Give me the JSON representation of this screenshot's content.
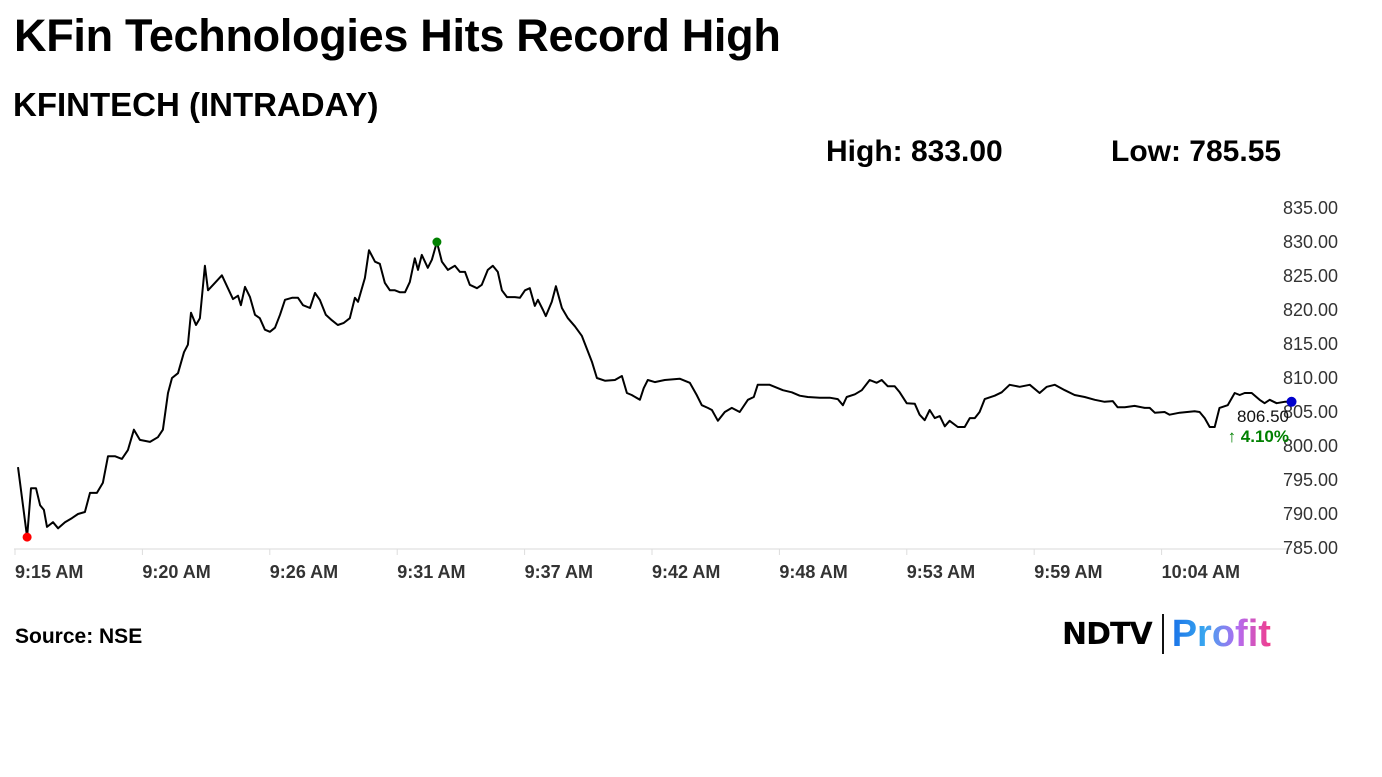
{
  "title": "KFin Technologies Hits Record High",
  "subtitle": "KFINTECH (INTRADAY)",
  "stats": {
    "high": "High: 833.00",
    "low": "Low: 785.55"
  },
  "source": "Source: NSE",
  "logo": {
    "left": "NDTV",
    "right": "Profit"
  },
  "colors": {
    "line": "#000000",
    "low_marker": "#ff0000",
    "high_marker": "#008000",
    "last_marker": "#0000cc",
    "change": "#008000"
  },
  "chart_data": {
    "type": "line",
    "title": "KFINTECH (INTRADAY)",
    "xlabel": "",
    "ylabel": "",
    "x_unit": "minutes since 9:15 AM",
    "ylim": [
      785,
      835
    ],
    "xlim": [
      0,
      53.1
    ],
    "yticks": [
      "835.00",
      "830.00",
      "825.00",
      "820.00",
      "815.00",
      "810.00",
      "805.00",
      "800.00",
      "795.00",
      "790.00",
      "785.00"
    ],
    "xticks": [
      "9:15 AM",
      "9:20 AM",
      "9:26 AM",
      "9:31 AM",
      "9:37 AM",
      "9:42 AM",
      "9:48 AM",
      "9:53 AM",
      "9:59 AM",
      "10:04 AM"
    ],
    "grid": false,
    "last_value": "806.50",
    "change": "4.10%",
    "low_point": [
      0.38,
      786.6
    ],
    "high_point": [
      17.46,
      830.0
    ],
    "points": [
      [
        0,
        796.9
      ],
      [
        0.38,
        786.6
      ],
      [
        0.54,
        793.8
      ],
      [
        0.75,
        793.8
      ],
      [
        0.92,
        791.3
      ],
      [
        1.08,
        790.6
      ],
      [
        1.21,
        788.1
      ],
      [
        1.46,
        788.8
      ],
      [
        1.67,
        787.9
      ],
      [
        1.96,
        788.8
      ],
      [
        2.25,
        789.4
      ],
      [
        2.5,
        790.0
      ],
      [
        2.79,
        790.3
      ],
      [
        3.0,
        793.1
      ],
      [
        3.29,
        793.1
      ],
      [
        3.54,
        794.6
      ],
      [
        3.75,
        798.5
      ],
      [
        4.04,
        798.5
      ],
      [
        4.33,
        798.1
      ],
      [
        4.58,
        799.4
      ],
      [
        4.83,
        802.4
      ],
      [
        5.08,
        800.9
      ],
      [
        5.5,
        800.6
      ],
      [
        5.83,
        801.3
      ],
      [
        6.04,
        802.4
      ],
      [
        6.25,
        807.8
      ],
      [
        6.42,
        810.0
      ],
      [
        6.67,
        810.7
      ],
      [
        6.92,
        813.8
      ],
      [
        7.08,
        814.9
      ],
      [
        7.21,
        819.6
      ],
      [
        7.42,
        817.8
      ],
      [
        7.58,
        818.8
      ],
      [
        7.79,
        826.5
      ],
      [
        7.92,
        822.9
      ],
      [
        8.21,
        824.0
      ],
      [
        8.5,
        825.1
      ],
      [
        8.75,
        823.2
      ],
      [
        8.96,
        821.6
      ],
      [
        9.17,
        822.1
      ],
      [
        9.29,
        820.7
      ],
      [
        9.46,
        823.4
      ],
      [
        9.67,
        821.9
      ],
      [
        9.88,
        819.3
      ],
      [
        10.08,
        818.8
      ],
      [
        10.29,
        817.1
      ],
      [
        10.5,
        816.8
      ],
      [
        10.71,
        817.4
      ],
      [
        10.92,
        819.3
      ],
      [
        11.13,
        821.5
      ],
      [
        11.42,
        821.8
      ],
      [
        11.67,
        821.8
      ],
      [
        11.88,
        820.7
      ],
      [
        12.17,
        820.3
      ],
      [
        12.38,
        822.5
      ],
      [
        12.58,
        821.5
      ],
      [
        12.83,
        819.3
      ],
      [
        13.08,
        818.5
      ],
      [
        13.33,
        817.8
      ],
      [
        13.58,
        818.1
      ],
      [
        13.83,
        818.8
      ],
      [
        14.04,
        821.8
      ],
      [
        14.17,
        821.2
      ],
      [
        14.46,
        824.7
      ],
      [
        14.63,
        828.8
      ],
      [
        14.88,
        827.1
      ],
      [
        15.08,
        826.8
      ],
      [
        15.29,
        824.0
      ],
      [
        15.5,
        822.9
      ],
      [
        15.71,
        822.9
      ],
      [
        15.92,
        822.6
      ],
      [
        16.13,
        822.6
      ],
      [
        16.33,
        824.1
      ],
      [
        16.54,
        827.6
      ],
      [
        16.67,
        825.9
      ],
      [
        16.83,
        828.1
      ],
      [
        17.08,
        826.2
      ],
      [
        17.25,
        827.4
      ],
      [
        17.46,
        830.0
      ],
      [
        17.67,
        827.1
      ],
      [
        17.92,
        825.9
      ],
      [
        18.21,
        826.5
      ],
      [
        18.42,
        825.6
      ],
      [
        18.63,
        825.6
      ],
      [
        18.83,
        823.7
      ],
      [
        19.13,
        823.2
      ],
      [
        19.33,
        823.7
      ],
      [
        19.58,
        825.9
      ],
      [
        19.79,
        826.5
      ],
      [
        20.0,
        825.6
      ],
      [
        20.17,
        822.9
      ],
      [
        20.38,
        821.9
      ],
      [
        20.71,
        821.9
      ],
      [
        20.92,
        821.8
      ],
      [
        21.13,
        822.9
      ],
      [
        21.33,
        823.2
      ],
      [
        21.54,
        820.6
      ],
      [
        21.67,
        821.5
      ],
      [
        21.88,
        820.0
      ],
      [
        22.0,
        819.1
      ],
      [
        22.25,
        821.2
      ],
      [
        22.42,
        823.5
      ],
      [
        22.67,
        820.3
      ],
      [
        22.92,
        818.8
      ],
      [
        23.21,
        817.6
      ],
      [
        23.5,
        816.2
      ],
      [
        23.92,
        812.4
      ],
      [
        24.13,
        810.0
      ],
      [
        24.46,
        809.6
      ],
      [
        24.88,
        809.7
      ],
      [
        25.17,
        810.3
      ],
      [
        25.38,
        807.8
      ],
      [
        25.58,
        807.5
      ],
      [
        25.92,
        806.8
      ],
      [
        26.08,
        808.5
      ],
      [
        26.25,
        809.7
      ],
      [
        26.54,
        809.4
      ],
      [
        26.96,
        809.7
      ],
      [
        27.58,
        809.9
      ],
      [
        28.0,
        809.3
      ],
      [
        28.29,
        807.5
      ],
      [
        28.5,
        806.0
      ],
      [
        28.75,
        805.6
      ],
      [
        28.92,
        805.3
      ],
      [
        29.17,
        803.7
      ],
      [
        29.46,
        805.0
      ],
      [
        29.75,
        805.6
      ],
      [
        30.08,
        805.0
      ],
      [
        30.42,
        806.8
      ],
      [
        30.67,
        807.2
      ],
      [
        30.83,
        809.0
      ],
      [
        31.33,
        809.0
      ],
      [
        31.88,
        808.2
      ],
      [
        32.25,
        807.9
      ],
      [
        32.58,
        807.4
      ],
      [
        32.92,
        807.2
      ],
      [
        33.42,
        807.1
      ],
      [
        33.83,
        807.1
      ],
      [
        34.17,
        806.9
      ],
      [
        34.38,
        806.0
      ],
      [
        34.54,
        807.2
      ],
      [
        34.88,
        807.6
      ],
      [
        35.17,
        808.2
      ],
      [
        35.5,
        809.7
      ],
      [
        35.79,
        809.3
      ],
      [
        36.0,
        809.7
      ],
      [
        36.25,
        808.8
      ],
      [
        36.54,
        808.8
      ],
      [
        36.75,
        807.9
      ],
      [
        37.04,
        806.3
      ],
      [
        37.38,
        806.2
      ],
      [
        37.58,
        804.6
      ],
      [
        37.79,
        803.8
      ],
      [
        38.0,
        805.3
      ],
      [
        38.21,
        804.1
      ],
      [
        38.42,
        804.4
      ],
      [
        38.63,
        802.9
      ],
      [
        38.83,
        803.7
      ],
      [
        39.17,
        802.8
      ],
      [
        39.46,
        802.8
      ],
      [
        39.67,
        804.1
      ],
      [
        39.88,
        804.1
      ],
      [
        40.08,
        805.0
      ],
      [
        40.29,
        806.9
      ],
      [
        40.71,
        807.4
      ],
      [
        41.0,
        807.9
      ],
      [
        41.33,
        809.0
      ],
      [
        41.75,
        808.7
      ],
      [
        42.17,
        809.0
      ],
      [
        42.58,
        807.8
      ],
      [
        42.88,
        808.7
      ],
      [
        43.21,
        809.0
      ],
      [
        43.63,
        808.2
      ],
      [
        44.04,
        807.5
      ],
      [
        44.46,
        807.2
      ],
      [
        44.88,
        806.8
      ],
      [
        45.29,
        806.5
      ],
      [
        45.63,
        806.6
      ],
      [
        45.83,
        805.7
      ],
      [
        46.13,
        805.7
      ],
      [
        46.54,
        805.9
      ],
      [
        46.96,
        805.6
      ],
      [
        47.17,
        805.6
      ],
      [
        47.38,
        804.9
      ],
      [
        47.79,
        805.0
      ],
      [
        48.0,
        804.6
      ],
      [
        48.42,
        804.9
      ],
      [
        49.04,
        805.1
      ],
      [
        49.25,
        805.0
      ],
      [
        49.46,
        804.1
      ],
      [
        49.67,
        802.8
      ],
      [
        49.88,
        802.8
      ],
      [
        50.08,
        805.6
      ],
      [
        50.42,
        806.0
      ],
      [
        50.71,
        807.8
      ],
      [
        50.92,
        807.5
      ],
      [
        51.13,
        807.8
      ],
      [
        51.42,
        807.8
      ],
      [
        51.75,
        806.8
      ],
      [
        51.96,
        806.3
      ],
      [
        52.17,
        806.8
      ],
      [
        52.46,
        806.3
      ],
      [
        52.79,
        806.5
      ],
      [
        53.08,
        806.5
      ]
    ]
  }
}
